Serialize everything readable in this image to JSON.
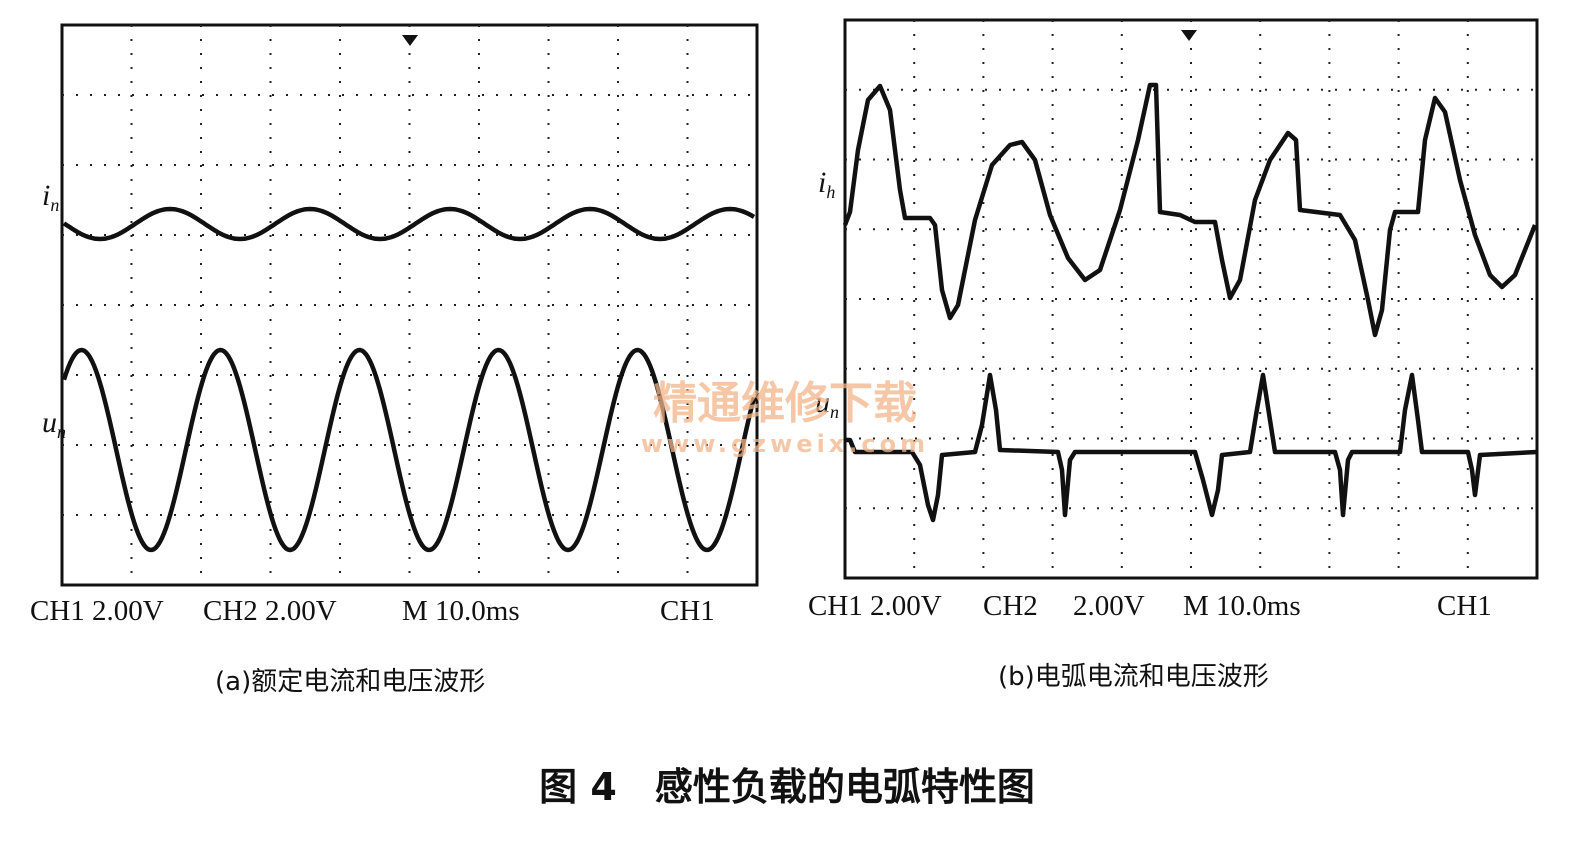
{
  "panels": [
    {
      "current_label": "i",
      "current_sub": "n",
      "voltage_label": "u",
      "voltage_sub": "n",
      "status": [
        "CH1 2.00V",
        "CH2 2.00V",
        "M 10.0ms",
        "CH1"
      ],
      "caption": "(a)额定电流和电压波形"
    },
    {
      "current_label": "i",
      "current_sub": "h",
      "voltage_label": "u",
      "voltage_sub": "n",
      "status": [
        "CH1 2.00V",
        "CH2",
        "2.00V",
        "M 10.0ms",
        "CH1"
      ],
      "caption": "(b)电弧电流和电压波形"
    }
  ],
  "watermark": {
    "name": "精通维修下载",
    "url": "www.gzweix.com"
  },
  "figure_caption": "图 4　感性负载的电弧特性图"
}
